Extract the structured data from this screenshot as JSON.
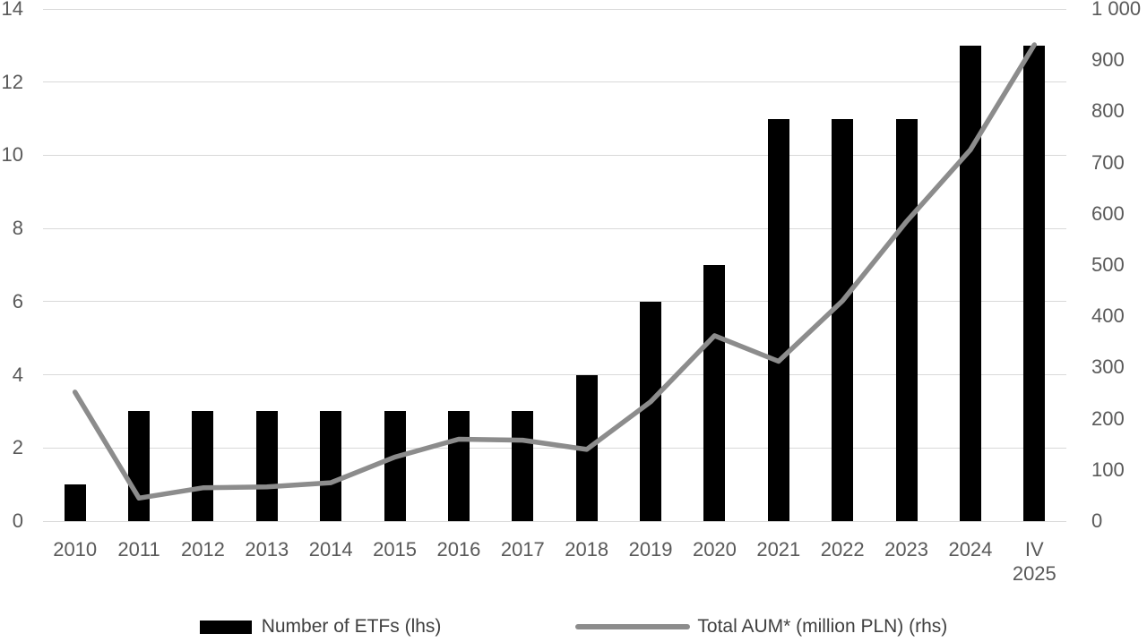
{
  "chart_data": {
    "type": "combo",
    "categories": [
      "2010",
      "2011",
      "2012",
      "2013",
      "2014",
      "2015",
      "2016",
      "2017",
      "2018",
      "2019",
      "2020",
      "2021",
      "2022",
      "2023",
      "2024",
      "IV\n2025"
    ],
    "series": [
      {
        "name": "Number of ETFs (lhs)",
        "type": "bar",
        "axis": "left",
        "color": "#000000",
        "values": [
          1,
          3,
          3,
          3,
          3,
          3,
          3,
          3,
          4,
          6,
          7,
          11,
          11,
          11,
          13,
          13
        ]
      },
      {
        "name": "Total AUM* (million PLN) (rhs)",
        "type": "line",
        "axis": "right",
        "color": "#8c8c8c",
        "values": [
          252,
          45,
          65,
          67,
          75,
          125,
          160,
          158,
          140,
          233,
          362,
          312,
          430,
          585,
          725,
          930
        ]
      }
    ],
    "left_axis": {
      "min": 0,
      "max": 14,
      "step": 2,
      "ticks": [
        0,
        2,
        4,
        6,
        8,
        10,
        12,
        14
      ],
      "tick_labels": [
        "0",
        "2",
        "4",
        "6",
        "8",
        "10",
        "12",
        "14"
      ]
    },
    "right_axis": {
      "min": 0,
      "max": 1000,
      "step": 100,
      "ticks": [
        0,
        100,
        200,
        300,
        400,
        500,
        600,
        700,
        800,
        900,
        1000
      ],
      "tick_labels": [
        "0",
        "100",
        "200",
        "300",
        "400",
        "500",
        "600",
        "700",
        "800",
        "900",
        "1 000"
      ]
    },
    "grid": "horizontal",
    "legend_position": "bottom",
    "title": "",
    "xlabel": "",
    "ylabel_left": "",
    "ylabel_right": ""
  },
  "colors": {
    "bar": "#000000",
    "line": "#8c8c8c",
    "gridline": "#d9d9d9",
    "tick_text": "#595959",
    "legend_text": "#404040",
    "background": "#ffffff"
  }
}
